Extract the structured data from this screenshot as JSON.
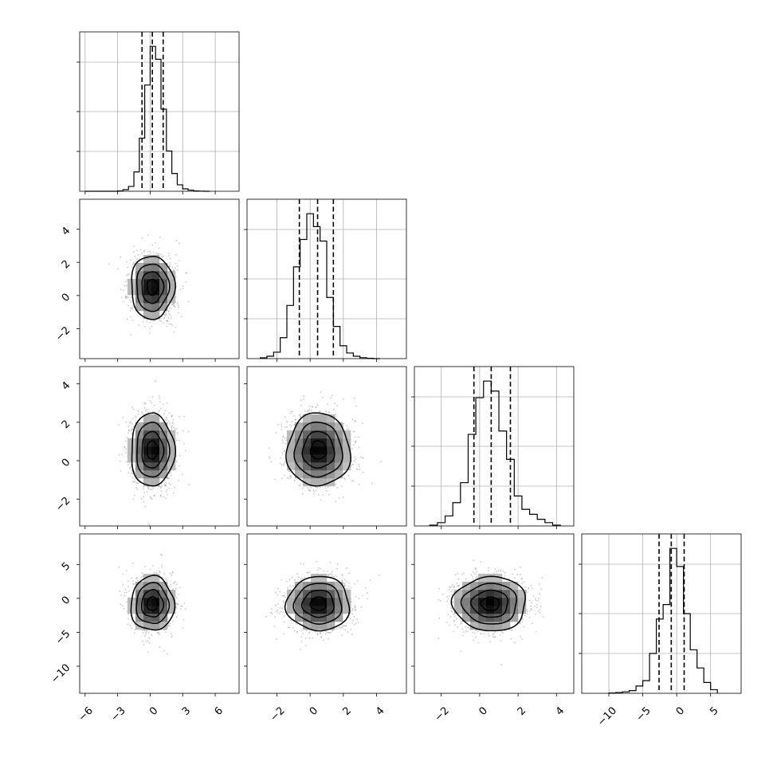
{
  "chart_data": {
    "type": "corner",
    "description_free": true,
    "grid": true,
    "colors": {
      "line": "#000000",
      "grid": "#b0b0b0",
      "scatter": "#9a9a9a",
      "density_low": "#e6e6e6",
      "density_high": "#000000"
    },
    "params": [
      {
        "range": [
          -6.5,
          8.2
        ],
        "ticks": [
          -6,
          -3,
          0,
          3,
          6
        ],
        "tick_labels": [
          "−6",
          "−3",
          "0",
          "3",
          "6"
        ],
        "mean": 0.2,
        "sd": 1.0,
        "quantiles": [
          -0.75,
          0.2,
          1.2
        ],
        "hist": {
          "edges": [
            -6.0,
            -5.5,
            -5.0,
            -4.5,
            -4.0,
            -3.5,
            -3.0,
            -2.5,
            -2.0,
            -1.5,
            -1.0,
            -0.5,
            0.0,
            0.5,
            1.0,
            1.5,
            2.0,
            2.5,
            3.0,
            3.5,
            4.0,
            4.5,
            5.0,
            5.5
          ],
          "counts": [
            0,
            0,
            0,
            0,
            0,
            0,
            0.2,
            1,
            3,
            12,
            33,
            66,
            90,
            82,
            51,
            25,
            11,
            4,
            1.5,
            0.7,
            0.2,
            0.1,
            0
          ]
        }
      },
      {
        "range": [
          -3.8,
          5.8
        ],
        "ticks": [
          -2,
          0,
          2,
          4
        ],
        "tick_labels": [
          "−2",
          "0",
          "2",
          "4"
        ],
        "mean": 0.5,
        "sd": 0.95,
        "quantiles": [
          -0.65,
          0.45,
          1.4
        ],
        "hist": {
          "edges": [
            -3.0,
            -2.6,
            -2.2,
            -1.8,
            -1.4,
            -1.0,
            -0.6,
            -0.2,
            0.2,
            0.6,
            1.0,
            1.4,
            1.8,
            2.2,
            2.6,
            3.0,
            3.4,
            3.8,
            4.2
          ],
          "counts": [
            0.5,
            1.5,
            4,
            13,
            33,
            57,
            74,
            90,
            82,
            73,
            38,
            20,
            8,
            3.5,
            1.5,
            0.6,
            0.2,
            0
          ]
        }
      },
      {
        "range": [
          -3.4,
          4.9
        ],
        "ticks": [
          -2,
          0,
          2,
          4
        ],
        "tick_labels": [
          "−2",
          "0",
          "2",
          "4"
        ],
        "mean": 0.55,
        "sd": 0.95,
        "quantiles": [
          -0.3,
          0.6,
          1.6
        ],
        "hist": {
          "edges": [
            -2.6,
            -2.2,
            -1.8,
            -1.4,
            -1.0,
            -0.6,
            -0.2,
            0.2,
            0.6,
            1.0,
            1.4,
            1.8,
            2.2,
            2.6,
            3.0,
            3.4,
            3.8,
            4.2
          ],
          "counts": [
            0.5,
            2,
            6,
            14,
            26,
            55,
            77,
            87,
            81,
            57,
            40,
            18,
            10,
            7,
            4,
            2,
            0.5
          ]
        }
      },
      {
        "range": [
          -14,
          9.5
        ],
        "ticks": [
          -10,
          -5,
          0,
          5
        ],
        "tick_labels": [
          "−10",
          "−5",
          "0",
          "5"
        ],
        "mean": -0.8,
        "sd": 2.0,
        "quantiles": [
          -2.6,
          -0.8,
          1.1
        ],
        "hist": {
          "edges": [
            -10.0,
            -9.0,
            -8.0,
            -7.0,
            -6.0,
            -5.0,
            -4.0,
            -3.0,
            -2.0,
            -1.0,
            0.0,
            1.0,
            2.0,
            3.0,
            4.0,
            5.0,
            6.0
          ],
          "counts": [
            0.2,
            0.4,
            0.8,
            1.5,
            4,
            7,
            22,
            41,
            49,
            80,
            70,
            44,
            24,
            14,
            6,
            2
          ]
        }
      }
    ],
    "y_ticks": {
      "1": {
        "values": [
          -2,
          0,
          2,
          4
        ],
        "labels": [
          "−2",
          "0",
          "2",
          "4"
        ]
      },
      "2": {
        "values": [
          -2,
          0,
          2,
          4
        ],
        "labels": [
          "−2",
          "0",
          "2",
          "4"
        ]
      },
      "3": {
        "values": [
          -10,
          -5,
          0,
          5
        ],
        "labels": [
          "−10",
          "−5",
          "0",
          "5"
        ]
      }
    },
    "contour_levels_sigma": [
      0.5,
      1.0,
      1.5,
      2.0
    ],
    "scatter_points_per_panel": 1400
  }
}
